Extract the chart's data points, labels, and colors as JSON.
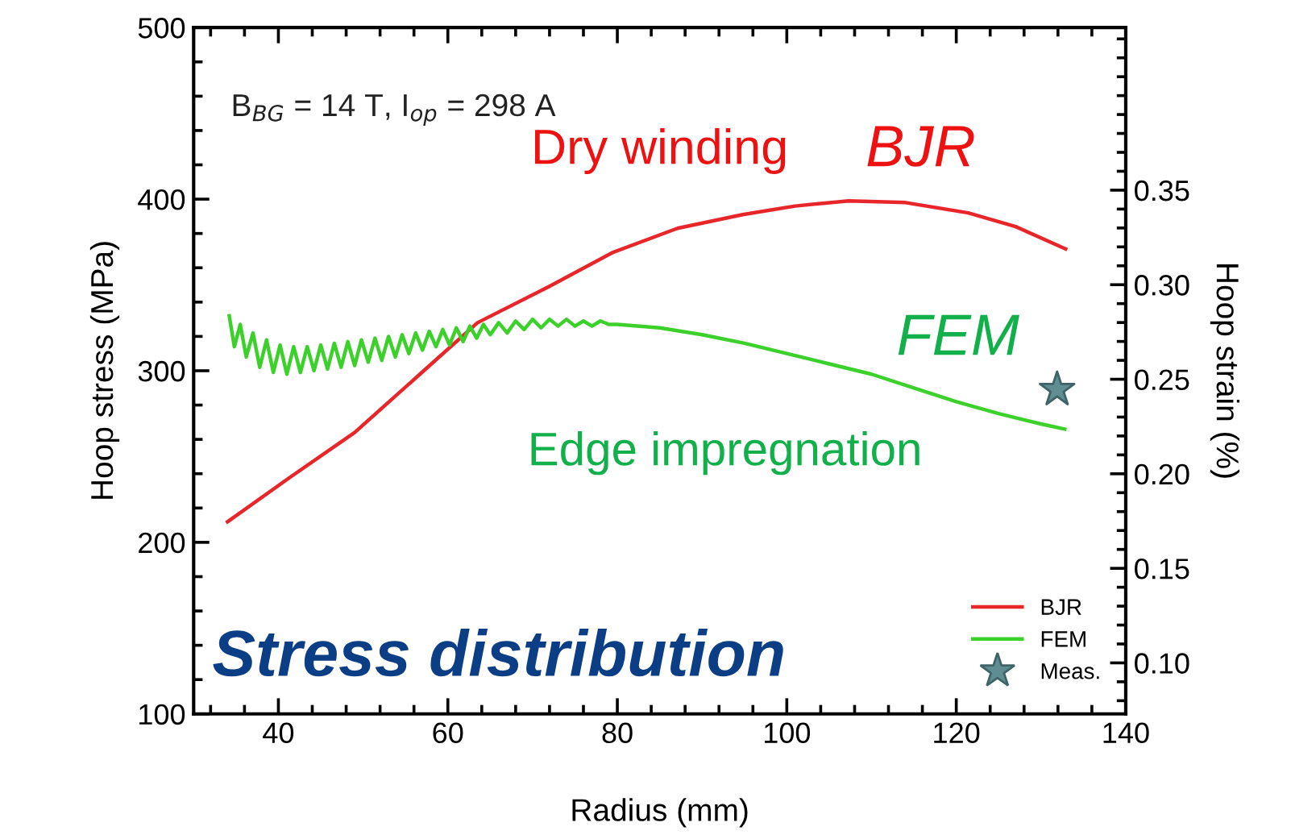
{
  "chart_data": {
    "type": "line",
    "xlabel": "Radius (mm)",
    "ylabel": "Hoop stress (MPa)",
    "y2label": "Hoop strain (%)",
    "xlim": [
      30,
      140
    ],
    "xticks": [
      40,
      60,
      80,
      100,
      120,
      140
    ],
    "ylim": [
      100,
      500
    ],
    "yticks": [
      100,
      200,
      300,
      400,
      500
    ],
    "y2lim": [
      0.073,
      0.436
    ],
    "y2ticks": [
      {
        "value": 0.1,
        "label": "0.10"
      },
      0.15,
      {
        "value": 0.2,
        "label": "0.20"
      },
      0.25,
      {
        "value": 0.3,
        "label": "0.30"
      },
      0.35
    ],
    "grid": false,
    "legend": "bottom right",
    "series": [
      {
        "name": "BJR",
        "color": "#e8262a",
        "x": [
          34,
          41.4,
          49,
          56.7,
          63.5,
          71.9,
          79.5,
          87.1,
          94.8,
          101,
          107.3,
          114,
          121.4,
          127,
          132.9
        ],
        "values": [
          212,
          238,
          264,
          298,
          328,
          349,
          369,
          383,
          391,
          396,
          399,
          398,
          392,
          384,
          371
        ]
      },
      {
        "name": "FEM",
        "color": "#3bd12a",
        "x": [
          34.2,
          34.8,
          35.5,
          36.2,
          37,
          37.8,
          38.6,
          39.4,
          40.2,
          41,
          41.8,
          42.6,
          43.4,
          44.2,
          45,
          45.8,
          46.6,
          47.4,
          48.2,
          49,
          49.8,
          50.6,
          51.4,
          52.2,
          53,
          53.8,
          54.6,
          55.4,
          56.2,
          57,
          57.8,
          58.6,
          59.4,
          60.2,
          61,
          61.8,
          62.6,
          63.4,
          64.2,
          65,
          66,
          67,
          68,
          69,
          70,
          71,
          72,
          73,
          74,
          75,
          76,
          77,
          78,
          79,
          80,
          85,
          90,
          95,
          100,
          105,
          110,
          115,
          120,
          125,
          130,
          132.8
        ],
        "values": [
          332,
          314,
          327,
          308,
          322,
          302,
          318,
          299,
          315,
          298,
          314,
          299,
          314,
          300,
          315,
          301,
          316,
          302,
          317,
          303,
          318,
          305,
          319,
          306,
          320,
          308,
          321,
          310,
          322,
          312,
          323,
          314,
          324,
          315,
          325,
          317,
          326,
          319,
          327,
          321,
          328,
          322,
          329,
          324,
          330,
          325,
          330,
          326,
          330,
          326,
          329,
          326,
          329,
          327,
          327,
          325,
          321,
          316,
          310,
          304,
          298,
          290,
          282,
          275,
          269,
          266
        ]
      },
      {
        "name": "Meas.",
        "type": "scatter",
        "marker": "star",
        "color": "#5f8d92",
        "x": [
          131.9
        ],
        "values": [
          289
        ]
      }
    ],
    "annotations": [
      "B$_{BG}$ = 14 T, I$_{op}$ = 298 A",
      "Dry winding",
      "BJR",
      "FEM",
      "Edge impregnation",
      "Stress distribution"
    ]
  }
}
